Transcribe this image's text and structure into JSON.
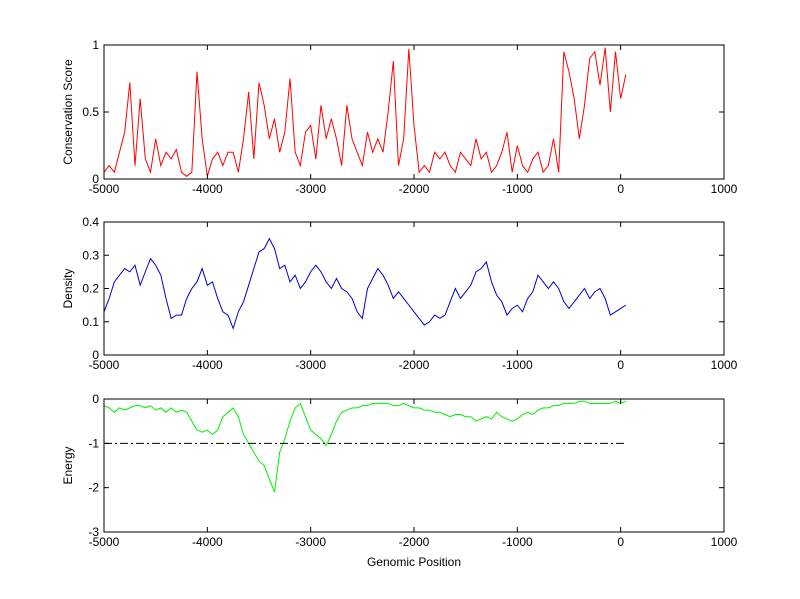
{
  "chart_data": [
    {
      "type": "line",
      "ylabel": "Conservation Score",
      "x": [
        -5000,
        -4950,
        -4900,
        -4850,
        -4800,
        -4750,
        -4700,
        -4650,
        -4600,
        -4550,
        -4500,
        -4450,
        -4400,
        -4350,
        -4300,
        -4250,
        -4200,
        -4150,
        -4100,
        -4050,
        -4000,
        -3950,
        -3900,
        -3850,
        -3800,
        -3750,
        -3700,
        -3650,
        -3600,
        -3550,
        -3500,
        -3450,
        -3400,
        -3350,
        -3300,
        -3250,
        -3200,
        -3150,
        -3100,
        -3050,
        -3000,
        -2950,
        -2900,
        -2850,
        -2800,
        -2750,
        -2700,
        -2650,
        -2600,
        -2550,
        -2500,
        -2450,
        -2400,
        -2350,
        -2300,
        -2250,
        -2200,
        -2150,
        -2100,
        -2050,
        -2000,
        -1950,
        -1900,
        -1850,
        -1800,
        -1750,
        -1700,
        -1650,
        -1600,
        -1550,
        -1500,
        -1450,
        -1400,
        -1350,
        -1300,
        -1250,
        -1200,
        -1150,
        -1100,
        -1050,
        -1000,
        -950,
        -900,
        -850,
        -800,
        -750,
        -700,
        -650,
        -600,
        -550,
        -500,
        -450,
        -400,
        -350,
        -300,
        -250,
        -200,
        -150,
        -100,
        -50,
        0,
        50
      ],
      "series": [
        {
          "color": "#ff0000",
          "values": [
            0.05,
            0.1,
            0.05,
            0.2,
            0.35,
            0.72,
            0.1,
            0.6,
            0.15,
            0.05,
            0.3,
            0.1,
            0.2,
            0.15,
            0.22,
            0.05,
            0.02,
            0.05,
            0.8,
            0.3,
            0.02,
            0.15,
            0.2,
            0.1,
            0.2,
            0.2,
            0.05,
            0.3,
            0.65,
            0.15,
            0.72,
            0.55,
            0.3,
            0.45,
            0.2,
            0.35,
            0.75,
            0.2,
            0.1,
            0.35,
            0.4,
            0.15,
            0.55,
            0.3,
            0.45,
            0.3,
            0.1,
            0.55,
            0.3,
            0.2,
            0.1,
            0.35,
            0.2,
            0.3,
            0.2,
            0.5,
            0.88,
            0.1,
            0.3,
            0.97,
            0.4,
            0.05,
            0.1,
            0.05,
            0.2,
            0.15,
            0.2,
            0.1,
            0.05,
            0.2,
            0.15,
            0.1,
            0.3,
            0.15,
            0.2,
            0.05,
            0.1,
            0.2,
            0.35,
            0.05,
            0.25,
            0.1,
            0.05,
            0.15,
            0.2,
            0.05,
            0.1,
            0.3,
            0.05,
            0.95,
            0.8,
            0.6,
            0.3,
            0.55,
            0.9,
            0.95,
            0.7,
            0.98,
            0.5,
            0.95,
            0.6,
            0.78
          ]
        }
      ],
      "xlim": [
        -5000,
        1000
      ],
      "xticks": [
        -5000,
        -4000,
        -3000,
        -2000,
        -1000,
        0,
        1000
      ],
      "ylim": [
        0,
        1
      ],
      "yticks": [
        0,
        0.5,
        1
      ]
    },
    {
      "type": "line",
      "ylabel": "Density",
      "x": [
        -5000,
        -4950,
        -4900,
        -4850,
        -4800,
        -4750,
        -4700,
        -4650,
        -4600,
        -4550,
        -4500,
        -4450,
        -4400,
        -4350,
        -4300,
        -4250,
        -4200,
        -4150,
        -4100,
        -4050,
        -4000,
        -3950,
        -3900,
        -3850,
        -3800,
        -3750,
        -3700,
        -3650,
        -3600,
        -3550,
        -3500,
        -3450,
        -3400,
        -3350,
        -3300,
        -3250,
        -3200,
        -3150,
        -3100,
        -3050,
        -3000,
        -2950,
        -2900,
        -2850,
        -2800,
        -2750,
        -2700,
        -2650,
        -2600,
        -2550,
        -2500,
        -2450,
        -2400,
        -2350,
        -2300,
        -2250,
        -2200,
        -2150,
        -2100,
        -2050,
        -2000,
        -1950,
        -1900,
        -1850,
        -1800,
        -1750,
        -1700,
        -1650,
        -1600,
        -1550,
        -1500,
        -1450,
        -1400,
        -1350,
        -1300,
        -1250,
        -1200,
        -1150,
        -1100,
        -1050,
        -1000,
        -950,
        -900,
        -850,
        -800,
        -750,
        -700,
        -650,
        -600,
        -550,
        -500,
        -450,
        -400,
        -350,
        -300,
        -250,
        -200,
        -150,
        -100,
        -50,
        0,
        50
      ],
      "series": [
        {
          "color": "#0000cc",
          "values": [
            0.13,
            0.17,
            0.22,
            0.24,
            0.26,
            0.25,
            0.27,
            0.21,
            0.25,
            0.29,
            0.27,
            0.24,
            0.17,
            0.11,
            0.12,
            0.12,
            0.17,
            0.2,
            0.22,
            0.26,
            0.21,
            0.22,
            0.17,
            0.13,
            0.12,
            0.08,
            0.13,
            0.16,
            0.21,
            0.26,
            0.31,
            0.32,
            0.35,
            0.32,
            0.26,
            0.27,
            0.22,
            0.24,
            0.2,
            0.22,
            0.25,
            0.27,
            0.25,
            0.22,
            0.2,
            0.23,
            0.2,
            0.19,
            0.17,
            0.13,
            0.11,
            0.2,
            0.23,
            0.26,
            0.24,
            0.21,
            0.17,
            0.19,
            0.17,
            0.15,
            0.13,
            0.11,
            0.09,
            0.1,
            0.12,
            0.11,
            0.12,
            0.16,
            0.2,
            0.17,
            0.19,
            0.21,
            0.25,
            0.26,
            0.28,
            0.22,
            0.18,
            0.16,
            0.12,
            0.14,
            0.15,
            0.13,
            0.17,
            0.19,
            0.24,
            0.22,
            0.2,
            0.22,
            0.2,
            0.16,
            0.14,
            0.16,
            0.18,
            0.2,
            0.17,
            0.19,
            0.2,
            0.17,
            0.12,
            0.13,
            0.14,
            0.15
          ]
        }
      ],
      "xlim": [
        -5000,
        1000
      ],
      "xticks": [
        -5000,
        -4000,
        -3000,
        -2000,
        -1000,
        0,
        1000
      ],
      "ylim": [
        0,
        0.4
      ],
      "yticks": [
        0,
        0.1,
        0.2,
        0.3,
        0.4
      ]
    },
    {
      "type": "line",
      "ylabel": "Energy",
      "xlabel": "Genomic Position",
      "x": [
        -5000,
        -4950,
        -4900,
        -4850,
        -4800,
        -4750,
        -4700,
        -4650,
        -4600,
        -4550,
        -4500,
        -4450,
        -4400,
        -4350,
        -4300,
        -4250,
        -4200,
        -4150,
        -4100,
        -4050,
        -4000,
        -3950,
        -3900,
        -3850,
        -3800,
        -3750,
        -3700,
        -3650,
        -3600,
        -3550,
        -3500,
        -3450,
        -3400,
        -3350,
        -3300,
        -3250,
        -3200,
        -3150,
        -3100,
        -3050,
        -3000,
        -2950,
        -2900,
        -2850,
        -2800,
        -2750,
        -2700,
        -2650,
        -2600,
        -2550,
        -2500,
        -2450,
        -2400,
        -2350,
        -2300,
        -2250,
        -2200,
        -2150,
        -2100,
        -2050,
        -2000,
        -1950,
        -1900,
        -1850,
        -1800,
        -1750,
        -1700,
        -1650,
        -1600,
        -1550,
        -1500,
        -1450,
        -1400,
        -1350,
        -1300,
        -1250,
        -1200,
        -1150,
        -1100,
        -1050,
        -1000,
        -950,
        -900,
        -850,
        -800,
        -750,
        -700,
        -650,
        -600,
        -550,
        -500,
        -450,
        -400,
        -350,
        -300,
        -250,
        -200,
        -150,
        -100,
        -50,
        0,
        50
      ],
      "series": [
        {
          "color": "#00ee00",
          "values": [
            -0.15,
            -0.2,
            -0.3,
            -0.2,
            -0.25,
            -0.2,
            -0.15,
            -0.15,
            -0.2,
            -0.15,
            -0.25,
            -0.2,
            -0.3,
            -0.2,
            -0.3,
            -0.25,
            -0.3,
            -0.5,
            -0.7,
            -0.75,
            -0.7,
            -0.8,
            -0.7,
            -0.4,
            -0.3,
            -0.2,
            -0.4,
            -0.8,
            -1.0,
            -1.2,
            -1.4,
            -1.5,
            -1.8,
            -2.1,
            -1.2,
            -0.9,
            -0.5,
            -0.2,
            -0.1,
            -0.4,
            -0.7,
            -0.8,
            -0.9,
            -1.05,
            -0.8,
            -0.5,
            -0.3,
            -0.25,
            -0.2,
            -0.2,
            -0.15,
            -0.15,
            -0.1,
            -0.1,
            -0.1,
            -0.1,
            -0.15,
            -0.15,
            -0.1,
            -0.15,
            -0.2,
            -0.2,
            -0.25,
            -0.25,
            -0.3,
            -0.3,
            -0.35,
            -0.4,
            -0.35,
            -0.35,
            -0.4,
            -0.4,
            -0.5,
            -0.45,
            -0.4,
            -0.45,
            -0.3,
            -0.4,
            -0.45,
            -0.5,
            -0.45,
            -0.35,
            -0.3,
            -0.35,
            -0.25,
            -0.2,
            -0.2,
            -0.15,
            -0.15,
            -0.1,
            -0.1,
            -0.1,
            -0.05,
            -0.05,
            -0.1,
            -0.1,
            -0.1,
            -0.1,
            -0.1,
            -0.05,
            -0.1,
            -0.05
          ]
        }
      ],
      "reference_line": {
        "y": -1,
        "x": [
          -5000,
          50
        ],
        "color": "#000000",
        "style": "dashdot"
      },
      "xlim": [
        -5000,
        1000
      ],
      "xticks": [
        -5000,
        -4000,
        -3000,
        -2000,
        -1000,
        0,
        1000
      ],
      "ylim": [
        -3,
        0
      ],
      "yticks": [
        -3,
        -2,
        -1,
        0
      ]
    }
  ]
}
